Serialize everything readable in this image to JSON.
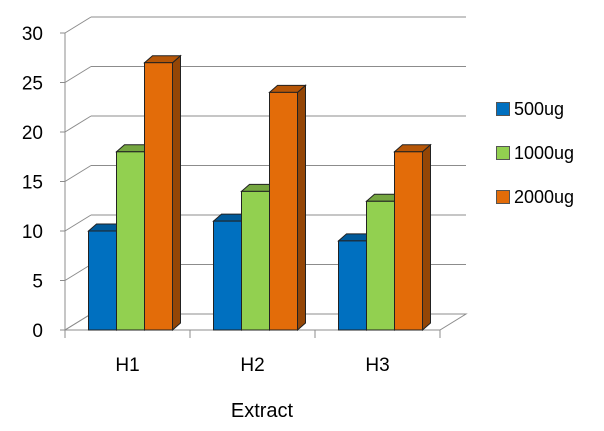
{
  "chart_data": {
    "type": "bar",
    "style": "3d-clustered-column",
    "categories": [
      "H1",
      "H2",
      "H3"
    ],
    "series": [
      {
        "name": "500ug",
        "values": [
          10,
          11,
          9
        ],
        "color": "#0070C0"
      },
      {
        "name": "1000ug",
        "values": [
          18,
          14,
          13
        ],
        "color": "#92D050"
      },
      {
        "name": "2000ug",
        "values": [
          27,
          24,
          18
        ],
        "color": "#E36C09"
      }
    ],
    "title": "",
    "xlabel": "Extract",
    "ylabel": "",
    "ylim": [
      0,
      30
    ],
    "yticks": [
      0,
      5,
      10,
      15,
      20,
      25,
      30
    ],
    "grid": true,
    "legend_position": "right"
  }
}
